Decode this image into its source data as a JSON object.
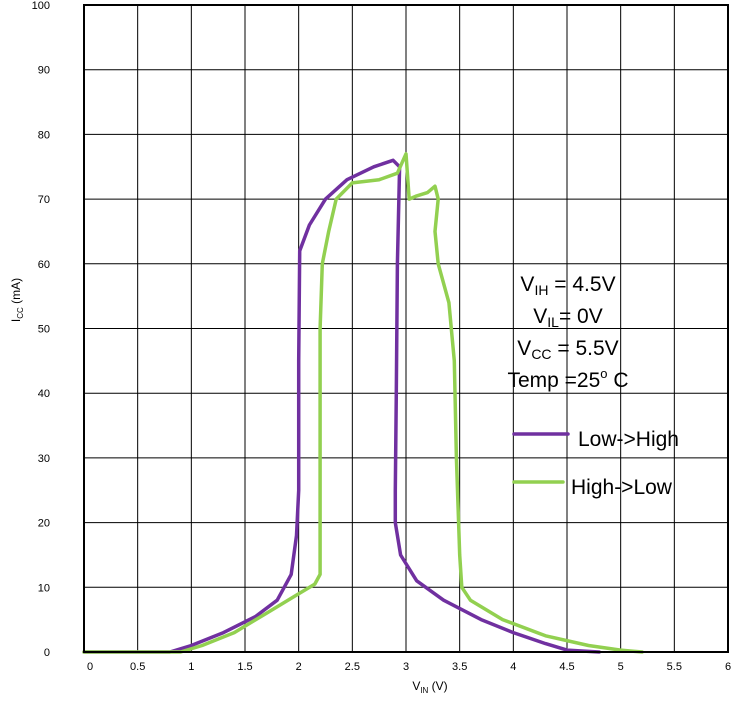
{
  "chart_data": {
    "type": "line",
    "xlabel": {
      "main": "V",
      "sub": "IN",
      "unit": " (V)"
    },
    "ylabel": {
      "main": "I",
      "sub": "CC",
      "unit": " (mA)"
    },
    "xlim": [
      0,
      6
    ],
    "ylim": [
      0,
      100
    ],
    "x_ticks": [
      "0",
      "0.5",
      "1",
      "1.5",
      "2",
      "2.5",
      "3",
      "3.5",
      "4",
      "4.5",
      "5",
      "5.5",
      "6"
    ],
    "y_ticks": [
      "0",
      "10",
      "20",
      "30",
      "40",
      "50",
      "60",
      "70",
      "80",
      "90",
      "100"
    ],
    "grid": true,
    "legend_position": "right",
    "series": [
      {
        "name": "Low->High",
        "color": "#7030a0",
        "points": [
          [
            0.0,
            0
          ],
          [
            0.8,
            0
          ],
          [
            1.0,
            1
          ],
          [
            1.3,
            3
          ],
          [
            1.6,
            5.5
          ],
          [
            1.8,
            8
          ],
          [
            1.93,
            12
          ],
          [
            1.98,
            18
          ],
          [
            2.0,
            25
          ],
          [
            2.0,
            45
          ],
          [
            2.01,
            62
          ],
          [
            2.1,
            66
          ],
          [
            2.25,
            70
          ],
          [
            2.45,
            73
          ],
          [
            2.7,
            75
          ],
          [
            2.88,
            76
          ],
          [
            2.94,
            75
          ],
          [
            2.92,
            60
          ],
          [
            2.91,
            40
          ],
          [
            2.9,
            25
          ],
          [
            2.9,
            20
          ],
          [
            2.95,
            15
          ],
          [
            3.1,
            11
          ],
          [
            3.35,
            8
          ],
          [
            3.7,
            5
          ],
          [
            4.0,
            3
          ],
          [
            4.3,
            1.3
          ],
          [
            4.5,
            0.3
          ],
          [
            4.8,
            0
          ]
        ]
      },
      {
        "name": "High->Low",
        "color": "#92d050",
        "points": [
          [
            0.0,
            0
          ],
          [
            0.9,
            0
          ],
          [
            1.1,
            1
          ],
          [
            1.4,
            3
          ],
          [
            1.7,
            6
          ],
          [
            2.0,
            9
          ],
          [
            2.15,
            10.5
          ],
          [
            2.2,
            12
          ],
          [
            2.2,
            30
          ],
          [
            2.2,
            50
          ],
          [
            2.22,
            60
          ],
          [
            2.28,
            65
          ],
          [
            2.35,
            70
          ],
          [
            2.5,
            72.5
          ],
          [
            2.75,
            73
          ],
          [
            2.92,
            74
          ],
          [
            3.0,
            77
          ],
          [
            3.03,
            70
          ],
          [
            3.1,
            70.5
          ],
          [
            3.2,
            71
          ],
          [
            3.27,
            72
          ],
          [
            3.3,
            70
          ],
          [
            3.27,
            65
          ],
          [
            3.3,
            60
          ],
          [
            3.4,
            54
          ],
          [
            3.45,
            45
          ],
          [
            3.47,
            30
          ],
          [
            3.5,
            15
          ],
          [
            3.52,
            10
          ],
          [
            3.6,
            8
          ],
          [
            3.9,
            5
          ],
          [
            4.3,
            2.5
          ],
          [
            4.7,
            1
          ],
          [
            5.0,
            0.3
          ],
          [
            5.2,
            0
          ]
        ]
      }
    ],
    "annotations": [
      {
        "main": "V",
        "sub": "IH",
        "rest": " = 4.5V"
      },
      {
        "main": "V",
        "sub": "IL",
        "rest": "= 0V"
      },
      {
        "main": "V",
        "sub": "CC",
        "rest": " = 5.5V"
      },
      {
        "main": "Temp =25",
        "sup": "o",
        "rest": " C"
      }
    ]
  }
}
